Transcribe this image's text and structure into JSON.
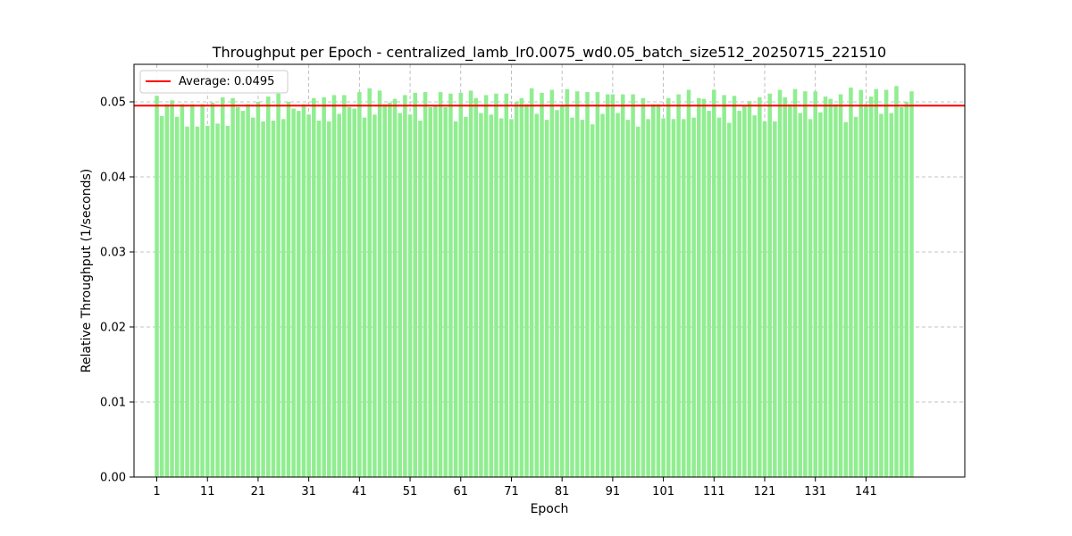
{
  "chart_data": {
    "type": "bar",
    "title": "Throughput per Epoch - centralized_lamb_lr0.0075_wd0.05_batch_size512_20250715_221510",
    "xlabel": "Epoch",
    "ylabel": "Relative Throughput (1/seconds)",
    "ylim": [
      0,
      0.055
    ],
    "xlim": [
      -3.5,
      160.5
    ],
    "grid": true,
    "legend_position": "top-left",
    "bar_color": "#90ee90",
    "x_ticks": [
      1,
      11,
      21,
      31,
      41,
      51,
      61,
      71,
      81,
      91,
      101,
      111,
      121,
      131,
      141
    ],
    "y_ticks": [
      0.0,
      0.01,
      0.02,
      0.03,
      0.04,
      0.05
    ],
    "y_tick_labels": [
      "0.00",
      "0.01",
      "0.02",
      "0.03",
      "0.04",
      "0.05"
    ],
    "average": {
      "value": 0.0495,
      "label": "Average: 0.0495",
      "color": "#ff0000"
    },
    "x": [
      1,
      2,
      3,
      4,
      5,
      6,
      7,
      8,
      9,
      10,
      11,
      12,
      13,
      14,
      15,
      16,
      17,
      18,
      19,
      20,
      21,
      22,
      23,
      24,
      25,
      26,
      27,
      28,
      29,
      30,
      31,
      32,
      33,
      34,
      35,
      36,
      37,
      38,
      39,
      40,
      41,
      42,
      43,
      44,
      45,
      46,
      47,
      48,
      49,
      50,
      51,
      52,
      53,
      54,
      55,
      56,
      57,
      58,
      59,
      60,
      61,
      62,
      63,
      64,
      65,
      66,
      67,
      68,
      69,
      70,
      71,
      72,
      73,
      74,
      75,
      76,
      77,
      78,
      79,
      80,
      81,
      82,
      83,
      84,
      85,
      86,
      87,
      88,
      89,
      90,
      91,
      92,
      93,
      94,
      95,
      96,
      97,
      98,
      99,
      100,
      101,
      102,
      103,
      104,
      105,
      106,
      107,
      108,
      109,
      110,
      111,
      112,
      113,
      114,
      115,
      116,
      117,
      118,
      119,
      120,
      121,
      122,
      123,
      124,
      125,
      126,
      127,
      128,
      129,
      130,
      131,
      132,
      133,
      134,
      135,
      136,
      137,
      138,
      139,
      140,
      141,
      142,
      143,
      144,
      145,
      146,
      147,
      148,
      149,
      150
    ],
    "values": [
      0.0508,
      0.0481,
      0.0497,
      0.0502,
      0.048,
      0.0497,
      0.0467,
      0.0497,
      0.0467,
      0.0497,
      0.0468,
      0.0499,
      0.0471,
      0.0506,
      0.0468,
      0.0505,
      0.0493,
      0.0488,
      0.0497,
      0.0479,
      0.05,
      0.0474,
      0.0507,
      0.0475,
      0.0511,
      0.0477,
      0.05,
      0.0491,
      0.0488,
      0.0497,
      0.0483,
      0.0505,
      0.0475,
      0.0506,
      0.0474,
      0.0509,
      0.0484,
      0.0509,
      0.0493,
      0.0491,
      0.0513,
      0.0479,
      0.0518,
      0.0483,
      0.0515,
      0.0497,
      0.0499,
      0.0504,
      0.0485,
      0.0509,
      0.0483,
      0.0512,
      0.0475,
      0.0513,
      0.0493,
      0.0494,
      0.0513,
      0.0493,
      0.0511,
      0.0474,
      0.0512,
      0.048,
      0.0515,
      0.0505,
      0.0485,
      0.0509,
      0.0483,
      0.0511,
      0.0478,
      0.0511,
      0.0477,
      0.05,
      0.0505,
      0.0497,
      0.0518,
      0.0484,
      0.0512,
      0.0476,
      0.0516,
      0.0489,
      0.0495,
      0.0517,
      0.0479,
      0.0514,
      0.0476,
      0.0513,
      0.047,
      0.0513,
      0.0484,
      0.051,
      0.051,
      0.0485,
      0.051,
      0.0476,
      0.051,
      0.0467,
      0.0505,
      0.0477,
      0.0497,
      0.0497,
      0.0478,
      0.0505,
      0.0477,
      0.051,
      0.0477,
      0.0516,
      0.0479,
      0.0505,
      0.0504,
      0.0488,
      0.0516,
      0.0479,
      0.0509,
      0.0472,
      0.0508,
      0.0488,
      0.0494,
      0.0501,
      0.0482,
      0.0506,
      0.0474,
      0.0511,
      0.0474,
      0.0516,
      0.0506,
      0.0497,
      0.0517,
      0.0485,
      0.0514,
      0.0477,
      0.0514,
      0.0486,
      0.0507,
      0.0504,
      0.0497,
      0.051,
      0.0473,
      0.0519,
      0.048,
      0.0516,
      0.0497,
      0.0507,
      0.0517,
      0.0484,
      0.0516,
      0.0485,
      0.0521,
      0.0493,
      0.05,
      0.0514
    ]
  }
}
